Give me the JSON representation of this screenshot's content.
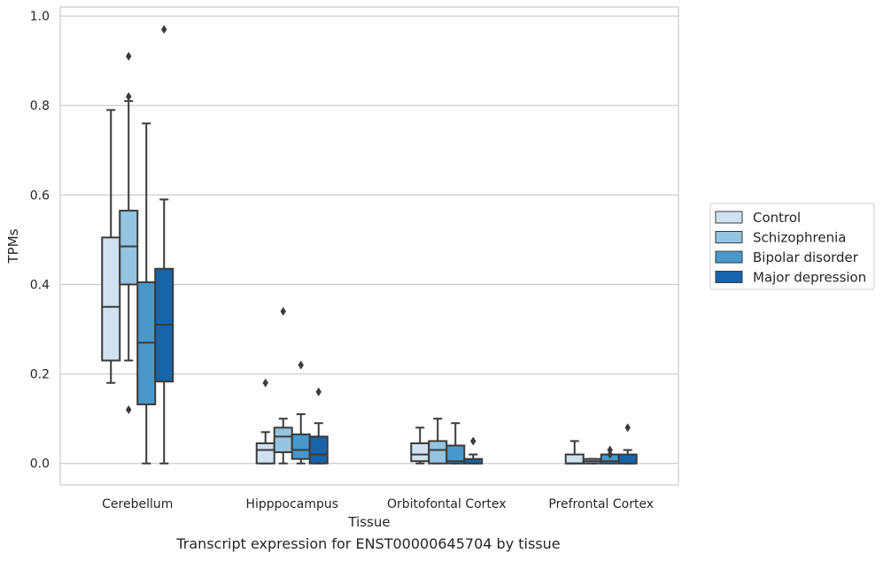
{
  "caption": "Transcript expression for ENST00000645704 by tissue",
  "chart_data": {
    "type": "box",
    "title": "",
    "xlabel": "Tissue",
    "ylabel": "TPMs",
    "categories": [
      "Cerebellum",
      "Hipppocampus",
      "Orbitofontal Cortex",
      "Prefrontal Cortex"
    ],
    "ylim": [
      -0.048,
      1.02
    ],
    "yticks": [
      "0.0",
      "0.2",
      "0.4",
      "0.6",
      "0.8",
      "1.0"
    ],
    "ytick_values": [
      0,
      0.2,
      0.4,
      0.6,
      0.8,
      1.0
    ],
    "grid": true,
    "legend_position": "right",
    "series": [
      {
        "name": "Control",
        "color": "#d0e1f2",
        "boxes": [
          {
            "min": 0.18,
            "q1": 0.23,
            "median": 0.35,
            "q3": 0.505,
            "max": 0.79,
            "outliers": []
          },
          {
            "min": 0.0,
            "q1": 0.0,
            "median": 0.03,
            "q3": 0.045,
            "max": 0.07,
            "outliers": [
              0.18
            ]
          },
          {
            "min": 0.0,
            "q1": 0.005,
            "median": 0.02,
            "q3": 0.045,
            "max": 0.08,
            "outliers": []
          },
          {
            "min": 0.0,
            "q1": 0.0,
            "median": 0.0,
            "q3": 0.02,
            "max": 0.05,
            "outliers": []
          }
        ]
      },
      {
        "name": "Schizophrenia",
        "color": "#94c4df",
        "boxes": [
          {
            "min": 0.23,
            "q1": 0.4,
            "median": 0.485,
            "q3": 0.565,
            "max": 0.81,
            "outliers": [
              0.12,
              0.82,
              0.91
            ]
          },
          {
            "min": 0.0,
            "q1": 0.025,
            "median": 0.06,
            "q3": 0.08,
            "max": 0.1,
            "outliers": [
              0.34
            ]
          },
          {
            "min": 0.0,
            "q1": 0.0,
            "median": 0.03,
            "q3": 0.05,
            "max": 0.1,
            "outliers": []
          },
          {
            "min": 0.0,
            "q1": 0.0,
            "median": 0.005,
            "q3": 0.01,
            "max": 0.01,
            "outliers": []
          }
        ]
      },
      {
        "name": "Bipolar disorder",
        "color": "#4a98c9",
        "boxes": [
          {
            "min": 0.0,
            "q1": 0.132,
            "median": 0.27,
            "q3": 0.405,
            "max": 0.76,
            "outliers": []
          },
          {
            "min": 0.0,
            "q1": 0.01,
            "median": 0.03,
            "q3": 0.065,
            "max": 0.11,
            "outliers": [
              0.22
            ]
          },
          {
            "min": 0.0,
            "q1": 0.0,
            "median": 0.005,
            "q3": 0.04,
            "max": 0.09,
            "outliers": []
          },
          {
            "min": 0.0,
            "q1": 0.0,
            "median": 0.005,
            "q3": 0.02,
            "max": 0.02,
            "outliers": [
              0.02,
              0.03
            ]
          }
        ]
      },
      {
        "name": "Major depression",
        "color": "#1764ab",
        "boxes": [
          {
            "min": 0.0,
            "q1": 0.183,
            "median": 0.31,
            "q3": 0.435,
            "max": 0.59,
            "outliers": [
              0.97
            ]
          },
          {
            "min": 0.0,
            "q1": 0.0,
            "median": 0.02,
            "q3": 0.06,
            "max": 0.09,
            "outliers": [
              0.16
            ]
          },
          {
            "min": 0.0,
            "q1": 0.0,
            "median": 0.0,
            "q3": 0.01,
            "max": 0.02,
            "outliers": [
              0.05
            ]
          },
          {
            "min": 0.0,
            "q1": 0.0,
            "median": 0.0,
            "q3": 0.02,
            "max": 0.03,
            "outliers": [
              0.08
            ]
          }
        ]
      }
    ]
  }
}
